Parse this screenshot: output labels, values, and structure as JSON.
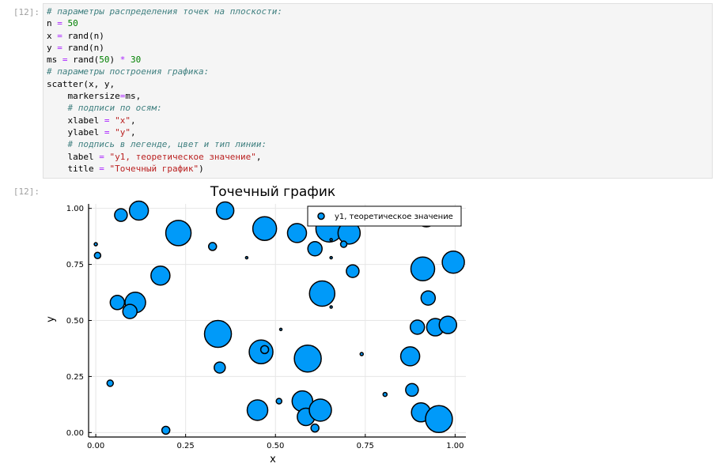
{
  "cell_in": {
    "prompt": "[12]:",
    "lines": [
      [
        {
          "t": "cm",
          "v": "# параметры распределения точек на плоскости:"
        }
      ],
      [
        {
          "t": "",
          "v": "n "
        },
        {
          "t": "op",
          "v": "="
        },
        {
          "t": "",
          "v": " "
        },
        {
          "t": "num",
          "v": "50"
        }
      ],
      [
        {
          "t": "",
          "v": "x "
        },
        {
          "t": "op",
          "v": "="
        },
        {
          "t": "",
          "v": " rand(n)"
        }
      ],
      [
        {
          "t": "",
          "v": "y "
        },
        {
          "t": "op",
          "v": "="
        },
        {
          "t": "",
          "v": " rand(n)"
        }
      ],
      [
        {
          "t": "",
          "v": "ms "
        },
        {
          "t": "op",
          "v": "="
        },
        {
          "t": "",
          "v": " rand("
        },
        {
          "t": "num",
          "v": "50"
        },
        {
          "t": "",
          "v": ") "
        },
        {
          "t": "op",
          "v": "*"
        },
        {
          "t": "",
          "v": " "
        },
        {
          "t": "num",
          "v": "30"
        }
      ],
      [
        {
          "t": "cm",
          "v": "# параметры построения графика:"
        }
      ],
      [
        {
          "t": "",
          "v": "scatter(x, y,"
        }
      ],
      [
        {
          "t": "",
          "v": "    markersize"
        },
        {
          "t": "op",
          "v": "="
        },
        {
          "t": "",
          "v": "ms,"
        }
      ],
      [
        {
          "t": "",
          "v": "    "
        },
        {
          "t": "cm",
          "v": "# подписи по осям:"
        }
      ],
      [
        {
          "t": "",
          "v": "    xlabel "
        },
        {
          "t": "op",
          "v": "="
        },
        {
          "t": "",
          "v": " "
        },
        {
          "t": "str",
          "v": "\"x\""
        },
        {
          "t": "",
          "v": ","
        }
      ],
      [
        {
          "t": "",
          "v": "    ylabel "
        },
        {
          "t": "op",
          "v": "="
        },
        {
          "t": "",
          "v": " "
        },
        {
          "t": "str",
          "v": "\"y\""
        },
        {
          "t": "",
          "v": ","
        }
      ],
      [
        {
          "t": "",
          "v": "    "
        },
        {
          "t": "cm",
          "v": "# подпись в легенде, цвет и тип линии:"
        }
      ],
      [
        {
          "t": "",
          "v": "    label "
        },
        {
          "t": "op",
          "v": "="
        },
        {
          "t": "",
          "v": " "
        },
        {
          "t": "str",
          "v": "\"y1, теоретическое значение\""
        },
        {
          "t": "",
          "v": ","
        }
      ],
      [
        {
          "t": "",
          "v": "    title "
        },
        {
          "t": "op",
          "v": "="
        },
        {
          "t": "",
          "v": " "
        },
        {
          "t": "str",
          "v": "\"Точечный график\""
        },
        {
          "t": "",
          "v": ")"
        }
      ]
    ]
  },
  "cell_out": {
    "prompt": "[12]:"
  },
  "chart_data": {
    "type": "scatter",
    "title": "Точечный график",
    "xlabel": "x",
    "ylabel": "y",
    "xlim": [
      -0.02,
      1.03
    ],
    "ylim": [
      -0.02,
      1.02
    ],
    "xticks": [
      "0.00",
      "0.25",
      "0.50",
      "0.75",
      "1.00"
    ],
    "yticks": [
      "0.00",
      "0.25",
      "0.50",
      "0.75",
      "1.00"
    ],
    "grid": true,
    "legend_position": "top-right",
    "marker_color": "#009af9",
    "series": [
      {
        "name": "y1, теоретическое значение",
        "points": [
          {
            "x": 0.07,
            "y": 0.97,
            "size": 8
          },
          {
            "x": 0.12,
            "y": 0.99,
            "size": 12
          },
          {
            "x": 0.23,
            "y": 0.89,
            "size": 16
          },
          {
            "x": 0.36,
            "y": 0.99,
            "size": 11
          },
          {
            "x": 0.47,
            "y": 0.91,
            "size": 15
          },
          {
            "x": 0.56,
            "y": 0.89,
            "size": 12
          },
          {
            "x": 0.65,
            "y": 0.91,
            "size": 17
          },
          {
            "x": 0.705,
            "y": 0.89,
            "size": 14
          },
          {
            "x": 0.92,
            "y": 0.96,
            "size": 12
          },
          {
            "x": 0.0,
            "y": 0.84,
            "size": 2
          },
          {
            "x": 0.005,
            "y": 0.79,
            "size": 4
          },
          {
            "x": 0.325,
            "y": 0.83,
            "size": 5
          },
          {
            "x": 0.42,
            "y": 0.78,
            "size": 1.5
          },
          {
            "x": 0.61,
            "y": 0.82,
            "size": 9
          },
          {
            "x": 0.655,
            "y": 0.86,
            "size": 1.5
          },
          {
            "x": 0.69,
            "y": 0.84,
            "size": 4
          },
          {
            "x": 0.655,
            "y": 0.78,
            "size": 1.5
          },
          {
            "x": 0.995,
            "y": 0.76,
            "size": 14
          },
          {
            "x": 0.18,
            "y": 0.7,
            "size": 12
          },
          {
            "x": 0.715,
            "y": 0.72,
            "size": 8
          },
          {
            "x": 0.91,
            "y": 0.73,
            "size": 15
          },
          {
            "x": 0.06,
            "y": 0.58,
            "size": 9
          },
          {
            "x": 0.11,
            "y": 0.58,
            "size": 13
          },
          {
            "x": 0.095,
            "y": 0.54,
            "size": 9
          },
          {
            "x": 0.63,
            "y": 0.62,
            "size": 16
          },
          {
            "x": 0.655,
            "y": 0.56,
            "size": 1.5
          },
          {
            "x": 0.925,
            "y": 0.6,
            "size": 9
          },
          {
            "x": 0.895,
            "y": 0.47,
            "size": 9
          },
          {
            "x": 0.945,
            "y": 0.47,
            "size": 11
          },
          {
            "x": 0.98,
            "y": 0.48,
            "size": 11
          },
          {
            "x": 0.515,
            "y": 0.46,
            "size": 1.5
          },
          {
            "x": 0.34,
            "y": 0.44,
            "size": 17
          },
          {
            "x": 0.46,
            "y": 0.36,
            "size": 15
          },
          {
            "x": 0.47,
            "y": 0.37,
            "size": 5
          },
          {
            "x": 0.59,
            "y": 0.33,
            "size": 17
          },
          {
            "x": 0.74,
            "y": 0.35,
            "size": 2
          },
          {
            "x": 0.875,
            "y": 0.34,
            "size": 12
          },
          {
            "x": 0.345,
            "y": 0.29,
            "size": 7
          },
          {
            "x": 0.04,
            "y": 0.22,
            "size": 4
          },
          {
            "x": 0.805,
            "y": 0.17,
            "size": 2.5
          },
          {
            "x": 0.88,
            "y": 0.19,
            "size": 8
          },
          {
            "x": 0.45,
            "y": 0.1,
            "size": 13
          },
          {
            "x": 0.51,
            "y": 0.14,
            "size": 3.5
          },
          {
            "x": 0.575,
            "y": 0.14,
            "size": 13
          },
          {
            "x": 0.585,
            "y": 0.07,
            "size": 11
          },
          {
            "x": 0.625,
            "y": 0.1,
            "size": 14
          },
          {
            "x": 0.61,
            "y": 0.02,
            "size": 5
          },
          {
            "x": 0.905,
            "y": 0.09,
            "size": 12
          },
          {
            "x": 0.955,
            "y": 0.06,
            "size": 17
          },
          {
            "x": 0.195,
            "y": 0.01,
            "size": 5
          }
        ]
      }
    ]
  }
}
